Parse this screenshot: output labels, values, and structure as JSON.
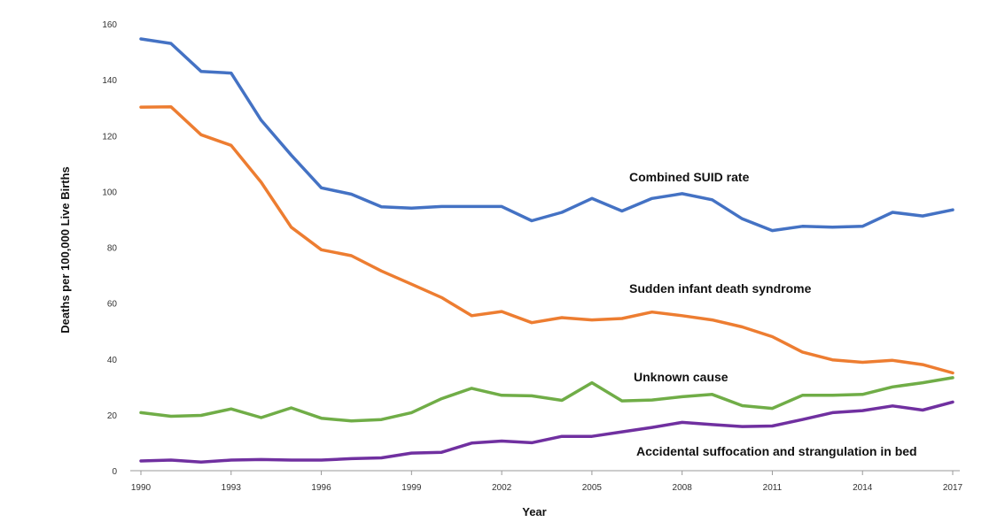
{
  "chart_data": {
    "type": "line",
    "xlabel": "Year",
    "ylabel": "Deaths per 100,000 Live Births",
    "ylim": [
      0,
      160
    ],
    "yticks": [
      0,
      20,
      40,
      60,
      80,
      100,
      120,
      140,
      160
    ],
    "xlim": [
      1990,
      2017
    ],
    "xticks": [
      "1990",
      "1993",
      "1996",
      "1999",
      "2002",
      "2005",
      "2008",
      "2011",
      "2014",
      "2017"
    ],
    "grid": false,
    "legend": "none",
    "x": [
      1990,
      1991,
      1992,
      1993,
      1994,
      1995,
      1996,
      1997,
      1998,
      1999,
      2000,
      2001,
      2002,
      2003,
      2004,
      2005,
      2006,
      2007,
      2008,
      2009,
      2010,
      2011,
      2012,
      2013,
      2014,
      2015,
      2016,
      2017
    ],
    "series": [
      {
        "name": "Combined SUID rate",
        "color": "#4472c4",
        "values": [
          154.6,
          153.0,
          143.0,
          142.4,
          125.5,
          113.0,
          101.3,
          99.0,
          94.5,
          94.0,
          94.6,
          94.6,
          94.6,
          89.5,
          92.5,
          97.5,
          93.0,
          97.5,
          99.2,
          97.0,
          90.2,
          86.0,
          87.5,
          87.2,
          87.5,
          92.5,
          91.2,
          93.4
        ]
      },
      {
        "name": "Sudden infant death syndrome",
        "color": "#ed7d31",
        "values": [
          130.2,
          130.3,
          120.3,
          116.5,
          103.3,
          87.2,
          79.1,
          77.0,
          71.5,
          66.8,
          62.0,
          55.5,
          57.0,
          53.0,
          54.8,
          54.0,
          54.5,
          56.8,
          55.5,
          54.0,
          51.5,
          48.0,
          42.5,
          39.7,
          38.8,
          39.5,
          38.0,
          35.0
        ]
      },
      {
        "name": "Unknown cause",
        "color": "#70ad47",
        "values": [
          20.8,
          19.5,
          19.8,
          22.1,
          19.0,
          22.5,
          18.8,
          17.8,
          18.3,
          20.8,
          25.8,
          29.5,
          27.0,
          26.8,
          25.2,
          31.5,
          25.0,
          25.3,
          26.5,
          27.3,
          23.3,
          22.3,
          27.0,
          27.0,
          27.3,
          30.0,
          31.5,
          33.3
        ]
      },
      {
        "name": "Accidental suffocation and strangulation in bed",
        "color": "#7030a0",
        "values": [
          3.5,
          3.8,
          3.1,
          3.8,
          4.0,
          3.8,
          3.8,
          4.3,
          4.6,
          6.3,
          6.6,
          9.9,
          10.6,
          10.0,
          12.3,
          12.3,
          13.9,
          15.5,
          17.3,
          16.5,
          15.8,
          16.0,
          18.3,
          20.8,
          21.5,
          23.2,
          21.7,
          24.6
        ]
      }
    ]
  }
}
